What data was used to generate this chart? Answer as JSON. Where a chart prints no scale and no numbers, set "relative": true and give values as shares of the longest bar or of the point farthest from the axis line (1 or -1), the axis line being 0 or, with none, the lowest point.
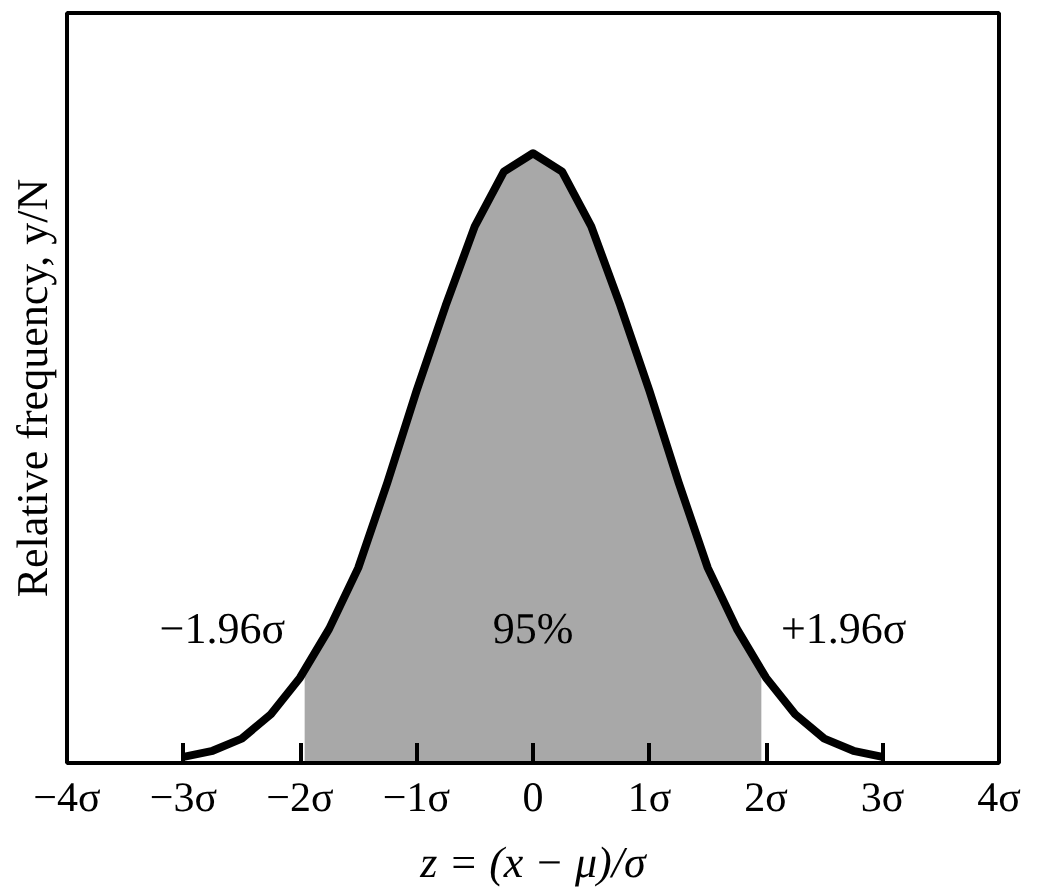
{
  "chart_data": {
    "type": "line",
    "relative": true,
    "xlabel": "z = (x − μ)/σ",
    "ylabel": "Relative frequency, y/N",
    "xlim": [
      -4,
      4
    ],
    "xticks": [
      {
        "value": -4,
        "label": "−4σ"
      },
      {
        "value": -3,
        "label": "−3σ"
      },
      {
        "value": -2,
        "label": "−2σ"
      },
      {
        "value": -1,
        "label": "−1σ"
      },
      0,
      {
        "value": 1,
        "label": "1σ"
      },
      {
        "value": 2,
        "label": "2σ"
      },
      {
        "value": 3,
        "label": "3σ"
      },
      {
        "value": 4,
        "label": "4σ"
      }
    ],
    "grid": false,
    "marker": "none",
    "line_style": "solid",
    "series": [
      {
        "type": "area",
        "color": "#a8a8a8",
        "x": [
          -1.96,
          -1.75,
          -1.5,
          -1.25,
          -1,
          -0.75,
          -0.5,
          -0.25,
          0,
          0.25,
          0.5,
          0.75,
          1,
          1.25,
          1.5,
          1.75,
          1.96
        ],
        "values": [
          0.15,
          0.22,
          0.32,
          0.46,
          0.61,
          0.75,
          0.88,
          0.97,
          1,
          0.97,
          0.88,
          0.75,
          0.61,
          0.46,
          0.32,
          0.22,
          0.15
        ]
      },
      {
        "color": "#000000",
        "x": [
          -3,
          -2.75,
          -2.5,
          -2.25,
          -2,
          -1.75,
          -1.5,
          -1.25,
          -1,
          -0.75,
          -0.5,
          -0.25,
          0,
          0.25,
          0.5,
          0.75,
          1,
          1.25,
          1.5,
          1.75,
          2,
          2.25,
          2.5,
          2.75,
          3
        ],
        "values": [
          0.01,
          0.02,
          0.04,
          0.08,
          0.14,
          0.22,
          0.32,
          0.46,
          0.61,
          0.75,
          0.88,
          0.97,
          1,
          0.97,
          0.88,
          0.75,
          0.61,
          0.46,
          0.32,
          0.22,
          0.14,
          0.08,
          0.04,
          0.02,
          0.01
        ]
      }
    ],
    "annotations": [
      "−1.96σ",
      "95%",
      "+1.96σ"
    ]
  }
}
